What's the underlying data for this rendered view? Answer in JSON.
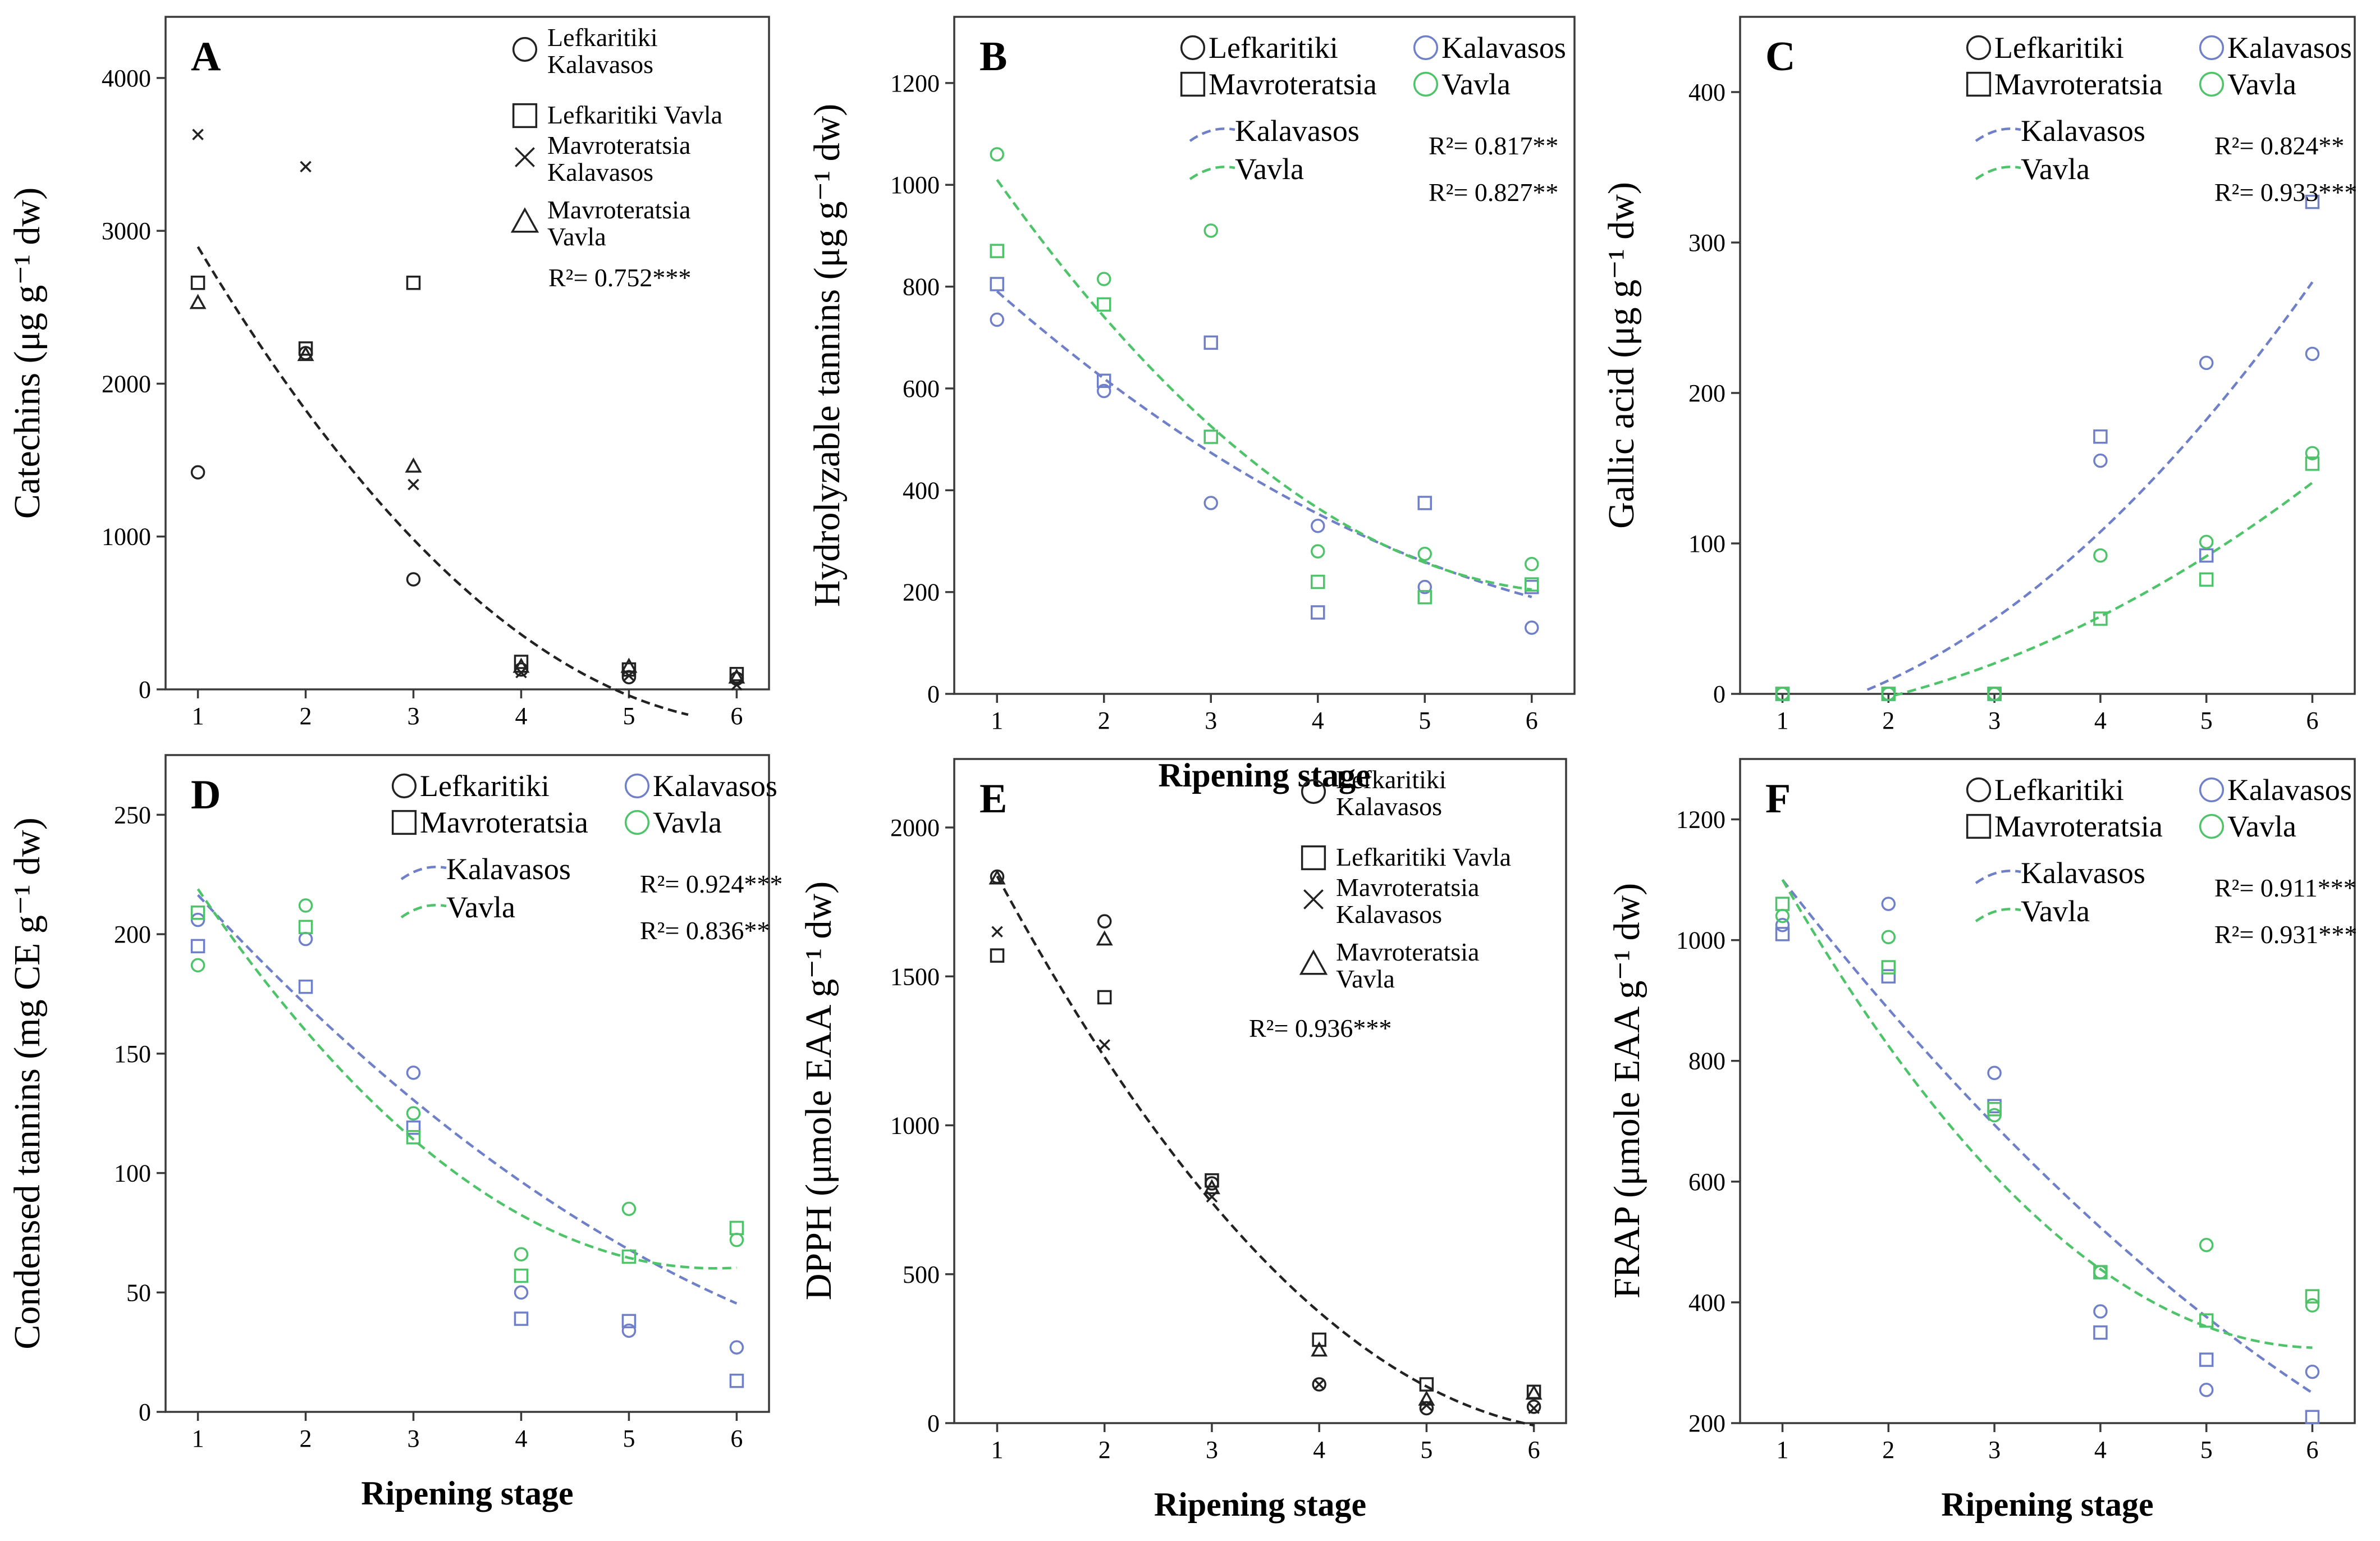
{
  "colors": {
    "black": "#222222",
    "blue": "#6f80c9",
    "green": "#4ec36a"
  },
  "x_axis_label": "Ripening stage",
  "chart_data": [
    {
      "id": "A",
      "type": "scatter",
      "letter": "A",
      "ylabel": "Catechins (μg g⁻¹ dw)",
      "xlabel": "",
      "xlim": [
        0.7,
        6.3
      ],
      "ylim": [
        0,
        4400
      ],
      "xticks": [
        1,
        2,
        3,
        4,
        5,
        6
      ],
      "yticks": [
        0,
        1000,
        2000,
        3000,
        4000
      ],
      "legend_style": "four",
      "legend": [
        "Lefkaritiki Kalavasos",
        "Lefkaritiki Vavla",
        "Mavroteratsia Kalavasos",
        "Mavroteratsia Vavla"
      ],
      "series": [
        {
          "name": "Lefkaritiki Kalavasos",
          "marker": "circle",
          "color": "black",
          "x": [
            1,
            2,
            3,
            4,
            5,
            6
          ],
          "y": [
            1420,
            2200,
            720,
            130,
            80,
            70
          ]
        },
        {
          "name": "Lefkaritiki Vavla",
          "marker": "square",
          "color": "black",
          "x": [
            1,
            2,
            3,
            4,
            5,
            6
          ],
          "y": [
            2660,
            2230,
            2660,
            180,
            130,
            100
          ]
        },
        {
          "name": "Mavroteratsia Kalavasos",
          "marker": "cross",
          "color": "black",
          "x": [
            1,
            2,
            3,
            4,
            5,
            6
          ],
          "y": [
            3630,
            3420,
            1340,
            110,
            90,
            30
          ]
        },
        {
          "name": "Mavroteratsia Vavla",
          "marker": "triangle",
          "color": "black",
          "x": [
            1,
            2,
            3,
            4,
            5,
            6
          ],
          "y": [
            2530,
            2190,
            1460,
            150,
            150,
            80
          ]
        }
      ],
      "fits": [
        {
          "name": "All",
          "color": "black",
          "coef": [
            4186.8,
            -1402.5,
            111.4
          ],
          "xrange": [
            1,
            5.55
          ]
        }
      ],
      "r2": [
        {
          "text": "R²= 0.752***",
          "color": "black"
        }
      ]
    },
    {
      "id": "B",
      "type": "scatter",
      "letter": "B",
      "ylabel": "Hydrolyzable tannins (μg g⁻¹ dw)",
      "xlabel": "Ripening stage",
      "xlim": [
        0.6,
        6.4
      ],
      "ylim": [
        0,
        1330
      ],
      "xticks": [
        1,
        2,
        3,
        4,
        5,
        6
      ],
      "yticks": [
        0,
        200,
        400,
        600,
        800,
        1000,
        1200
      ],
      "legend_style": "cultivar",
      "legend": [
        "Lefkaritiki",
        "Kalavasos",
        "Mavroteratsia",
        "Vavla",
        "Kalavasos",
        "Vavla"
      ],
      "series": [
        {
          "name": "Lefkaritiki Kalavasos",
          "marker": "circle",
          "color": "blue",
          "x": [
            1,
            2,
            3,
            4,
            5,
            6
          ],
          "y": [
            735,
            595,
            375,
            330,
            210,
            130
          ]
        },
        {
          "name": "Mavroteratsia Kalavasos",
          "marker": "square",
          "color": "blue",
          "x": [
            1,
            2,
            3,
            4,
            5,
            6
          ],
          "y": [
            805,
            615,
            690,
            160,
            375,
            210
          ]
        },
        {
          "name": "Lefkaritiki Vavla",
          "marker": "circle",
          "color": "green",
          "x": [
            1,
            2,
            3,
            4,
            5,
            6
          ],
          "y": [
            1060,
            815,
            910,
            280,
            275,
            255
          ]
        },
        {
          "name": "Mavroteratsia Vavla",
          "marker": "square",
          "color": "green",
          "x": [
            1,
            2,
            3,
            4,
            5,
            6
          ],
          "y": [
            870,
            765,
            505,
            220,
            190,
            215
          ]
        }
      ],
      "fits": [
        {
          "name": "Kalavasos",
          "color": "blue",
          "coef": [
            987.7,
            -209.7,
            12.8
          ],
          "xrange": [
            1,
            6
          ]
        },
        {
          "name": "Vavla",
          "color": "green",
          "coef": [
            1333.0,
            -350.0,
            27.0
          ],
          "xrange": [
            1,
            6
          ]
        }
      ],
      "r2": [
        {
          "text": "R²= 0.817**",
          "color": "black"
        },
        {
          "text": "R²= 0.827**",
          "color": "black"
        }
      ]
    },
    {
      "id": "C",
      "type": "scatter",
      "letter": "C",
      "ylabel": "Gallic acid (μg g⁻¹ dw)",
      "xlabel": "",
      "xlim": [
        0.6,
        6.4
      ],
      "ylim": [
        0,
        450
      ],
      "xticks": [
        1,
        2,
        3,
        4,
        5,
        6
      ],
      "yticks": [
        0,
        100,
        200,
        300,
        400
      ],
      "legend_style": "cultivar",
      "legend": [
        "Lefkaritiki",
        "Kalavasos",
        "Mavroteratsia",
        "Vavla",
        "Kalavasos",
        "Vavla"
      ],
      "series": [
        {
          "name": "Lefkaritiki Kalavasos",
          "marker": "circle",
          "color": "blue",
          "x": [
            1,
            2,
            3,
            4,
            5,
            6
          ],
          "y": [
            0,
            0,
            0,
            155,
            220,
            226
          ]
        },
        {
          "name": "Mavroteratsia Kalavasos",
          "marker": "square",
          "color": "blue",
          "x": [
            1,
            2,
            3,
            4,
            5,
            6
          ],
          "y": [
            0,
            0,
            0,
            171,
            92,
            327
          ]
        },
        {
          "name": "Lefkaritiki Vavla",
          "marker": "circle",
          "color": "green",
          "x": [
            1,
            2,
            3,
            4,
            5,
            6
          ],
          "y": [
            0,
            0,
            0,
            92,
            101,
            160
          ]
        },
        {
          "name": "Mavroteratsia Vavla",
          "marker": "square",
          "color": "green",
          "x": [
            1,
            2,
            3,
            4,
            5,
            6
          ],
          "y": [
            0,
            0,
            0,
            50,
            76,
            153
          ]
        }
      ],
      "fits": [
        {
          "name": "Kalavasos",
          "color": "blue",
          "coef": [
            -22.7,
            -1.0,
            8.4
          ],
          "xrange": [
            1.8,
            6
          ]
        },
        {
          "name": "Vavla",
          "color": "green",
          "coef": [
            -19.8,
            0.0,
            4.45
          ],
          "xrange": [
            2.05,
            6
          ]
        }
      ],
      "r2": [
        {
          "text": "R²= 0.824**",
          "color": "black"
        },
        {
          "text": "R²= 0.933***",
          "color": "black"
        }
      ]
    },
    {
      "id": "D",
      "type": "scatter",
      "letter": "D",
      "ylabel": "Condensed tannins (mg CE g⁻¹ dw)",
      "xlabel": "Ripening stage",
      "xlim": [
        0.7,
        6.3
      ],
      "ylim": [
        0,
        275
      ],
      "xticks": [
        1,
        2,
        3,
        4,
        5,
        6
      ],
      "yticks": [
        0,
        50,
        100,
        150,
        200,
        250
      ],
      "legend_style": "cultivar",
      "legend": [
        "Lefkaritiki",
        "Kalavasos",
        "Mavroteratsia",
        "Vavla",
        "Kalavasos",
        "Vavla"
      ],
      "series": [
        {
          "name": "Lefkaritiki Kalavasos",
          "marker": "circle",
          "color": "blue",
          "x": [
            1,
            2,
            3,
            4,
            5,
            6
          ],
          "y": [
            206,
            198,
            142,
            50,
            34,
            27
          ]
        },
        {
          "name": "Mavroteratsia Kalavasos",
          "marker": "square",
          "color": "blue",
          "x": [
            1,
            2,
            3,
            4,
            5,
            6
          ],
          "y": [
            195,
            178,
            119,
            39,
            38,
            13
          ]
        },
        {
          "name": "Lefkaritiki Vavla",
          "marker": "circle",
          "color": "green",
          "x": [
            1,
            2,
            3,
            4,
            5,
            6
          ],
          "y": [
            187,
            212,
            125,
            66,
            85,
            72
          ]
        },
        {
          "name": "Mavroteratsia Vavla",
          "marker": "square",
          "color": "green",
          "x": [
            1,
            2,
            3,
            4,
            5,
            6
          ],
          "y": [
            209,
            203,
            115,
            57,
            65,
            77
          ]
        }
      ],
      "fits": [
        {
          "name": "Kalavasos",
          "color": "blue",
          "coef": [
            268.0,
            -54.5,
            2.9
          ],
          "xrange": [
            1,
            6
          ]
        },
        {
          "name": "Vavla",
          "color": "green",
          "coef": [
            292.0,
            -80.0,
            6.9
          ],
          "xrange": [
            1,
            6
          ]
        }
      ],
      "r2": [
        {
          "text": "R²= 0.924***",
          "color": "black"
        },
        {
          "text": "R²= 0.836**",
          "color": "black"
        }
      ]
    },
    {
      "id": "E",
      "type": "scatter",
      "letter": "E",
      "ylabel": "DPPH (μmole EAA g⁻¹ dw)",
      "xlabel": "Ripening stage",
      "xlim": [
        0.6,
        6.3
      ],
      "ylim": [
        0,
        2230
      ],
      "xticks": [
        1,
        2,
        3,
        4,
        5,
        6
      ],
      "yticks": [
        0,
        500,
        1000,
        1500,
        2000
      ],
      "legend_style": "four",
      "legend": [
        "Lefkaritiki Kalavasos",
        "Lefkaritiki Vavla",
        "Mavroteratsia Kalavasos",
        "Mavroteratsia Vavla"
      ],
      "series": [
        {
          "name": "Lefkaritiki Kalavasos",
          "marker": "circle",
          "color": "black",
          "x": [
            1,
            2,
            3,
            4,
            5,
            6
          ],
          "y": [
            1835,
            1685,
            805,
            130,
            50,
            55
          ]
        },
        {
          "name": "Lefkaritiki Vavla",
          "marker": "square",
          "color": "black",
          "x": [
            1,
            2,
            3,
            4,
            5,
            6
          ],
          "y": [
            1570,
            1430,
            815,
            280,
            130,
            105
          ]
        },
        {
          "name": "Mavroteratsia Kalavasos",
          "marker": "cross",
          "color": "black",
          "x": [
            1,
            2,
            3,
            4,
            5,
            6
          ],
          "y": [
            1650,
            1270,
            760,
            130,
            60,
            50
          ]
        },
        {
          "name": "Mavroteratsia Vavla",
          "marker": "triangle",
          "color": "black",
          "x": [
            1,
            2,
            3,
            4,
            5,
            6
          ],
          "y": [
            1830,
            1625,
            790,
            245,
            80,
            100
          ]
        }
      ],
      "fits": [
        {
          "name": "All",
          "color": "black",
          "coef": [
            2563.0,
            -786.0,
            59.6
          ],
          "xrange": [
            1,
            6
          ]
        }
      ],
      "r2": [
        {
          "text": "R²= 0.936***",
          "color": "black"
        }
      ]
    },
    {
      "id": "F",
      "type": "scatter",
      "letter": "F",
      "ylabel": "FRAP (μmole EAA g⁻¹ dw)",
      "xlabel": "Ripening stage",
      "xlim": [
        0.6,
        6.4
      ],
      "ylim": [
        200,
        1300
      ],
      "xticks": [
        1,
        2,
        3,
        4,
        5,
        6
      ],
      "yticks": [
        200,
        400,
        600,
        800,
        1000,
        1200
      ],
      "legend_style": "cultivar",
      "legend": [
        "Lefkaritiki",
        "Kalavasos",
        "Mavroteratsia",
        "Vavla",
        "Kalavasos",
        "Vavla"
      ],
      "series": [
        {
          "name": "Lefkaritiki Kalavasos",
          "marker": "circle",
          "color": "blue",
          "x": [
            1,
            2,
            3,
            4,
            5,
            6
          ],
          "y": [
            1025,
            1060,
            780,
            385,
            255,
            285
          ]
        },
        {
          "name": "Mavroteratsia Kalavasos",
          "marker": "square",
          "color": "blue",
          "x": [
            1,
            2,
            3,
            4,
            5,
            6
          ],
          "y": [
            1010,
            940,
            725,
            350,
            305,
            210
          ]
        },
        {
          "name": "Lefkaritiki Vavla",
          "marker": "circle",
          "color": "green",
          "x": [
            1,
            2,
            3,
            4,
            5,
            6
          ],
          "y": [
            1040,
            1005,
            710,
            450,
            495,
            395
          ]
        },
        {
          "name": "Mavroteratsia Vavla",
          "marker": "square",
          "color": "green",
          "x": [
            1,
            2,
            3,
            4,
            5,
            6
          ],
          "y": [
            1060,
            955,
            720,
            450,
            370,
            410
          ]
        }
      ],
      "fits": [
        {
          "name": "Kalavasos",
          "color": "blue",
          "coef": [
            1336.0,
            -247.0,
            11.0
          ],
          "xrange": [
            1,
            6
          ]
        },
        {
          "name": "Vavla",
          "color": "green",
          "coef": [
            1435.0,
            -365.0,
            30.0
          ],
          "xrange": [
            1,
            6
          ]
        }
      ],
      "r2": [
        {
          "text": "R²= 0.911***",
          "color": "black"
        },
        {
          "text": "R²= 0.931***",
          "color": "black"
        }
      ]
    }
  ]
}
